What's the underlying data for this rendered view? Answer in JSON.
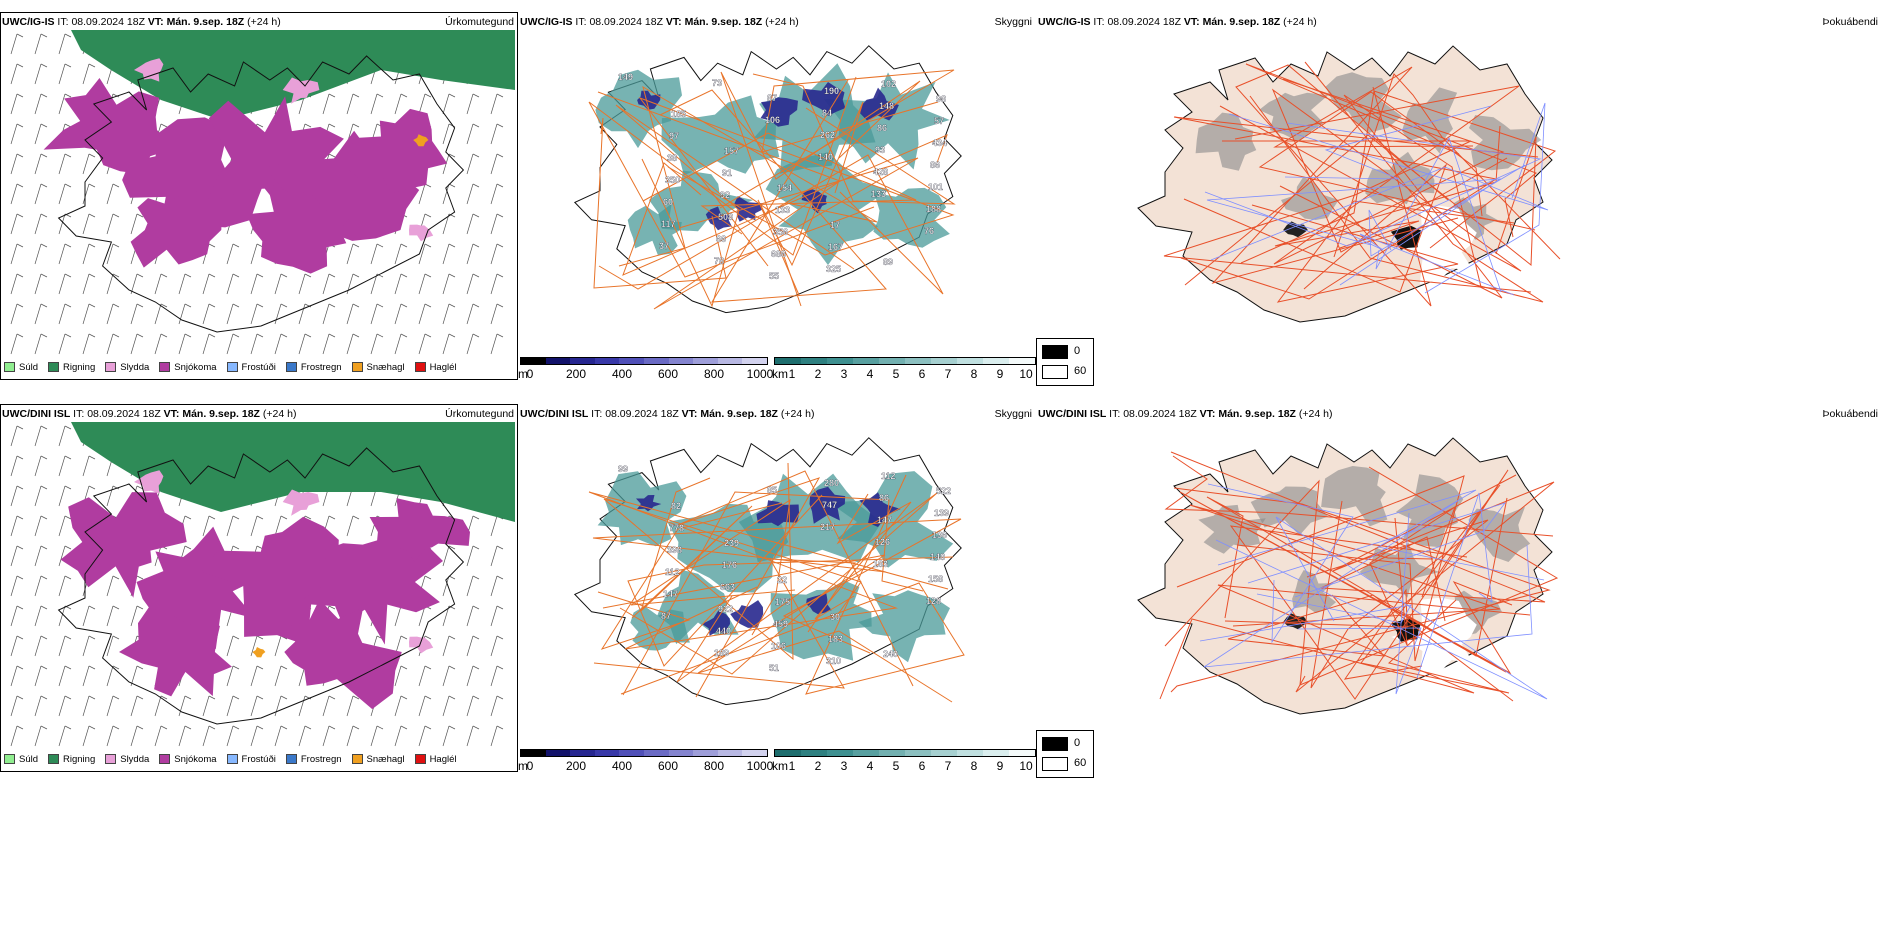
{
  "colors": {
    "rain": "#2e8b57",
    "snow": "#b03ca0",
    "sleet": "#e8a0d8",
    "drizzle": "#90ee90",
    "freezing_drizzle": "#87b8ff",
    "freezing_rain": "#3a78c9",
    "snow_pellets": "#f0a020",
    "hail": "#e01010",
    "roads": "#e8742a",
    "land_fog": "#f3e2d6",
    "fog_roads": "#e8502a",
    "rivers": "#7f8fff"
  },
  "rows": [
    {
      "model": "UWC/IG-IS",
      "it_label": "IT:",
      "it_value": "08.09.2024 18Z",
      "vt_label": "VT:",
      "vt_value": "Mán. 9.sep. 18Z",
      "lead": "(+24 h)",
      "panel_precip": "Úrkomutegund",
      "panel_cloud": "Skyggni",
      "panel_fog": "Þokuábendi",
      "cloud_labels": [
        {
          "t": "149"
        },
        {
          "t": "185"
        },
        {
          "t": "157"
        },
        {
          "t": "154"
        },
        {
          "t": "17"
        },
        {
          "t": "89"
        },
        {
          "t": "98"
        },
        {
          "t": "97"
        },
        {
          "t": "91"
        },
        {
          "t": "133"
        },
        {
          "t": "167"
        },
        {
          "t": "102"
        },
        {
          "t": "57"
        },
        {
          "t": "38"
        },
        {
          "t": "92"
        },
        {
          "t": "356"
        },
        {
          "t": "325"
        },
        {
          "t": "148"
        },
        {
          "t": "434"
        },
        {
          "t": "350"
        },
        {
          "t": "508"
        },
        {
          "t": "686"
        },
        {
          "t": "190"
        },
        {
          "t": "86"
        },
        {
          "t": "86"
        },
        {
          "t": "60"
        },
        {
          "t": "66"
        },
        {
          "t": "55"
        },
        {
          "t": "84"
        },
        {
          "t": "93"
        },
        {
          "t": "101"
        },
        {
          "t": "117"
        },
        {
          "t": "78"
        },
        {
          "t": "87"
        },
        {
          "t": "262"
        },
        {
          "t": "428"
        },
        {
          "t": "188"
        },
        {
          "t": "37"
        },
        {
          "t": "73"
        },
        {
          "t": "106"
        },
        {
          "t": "140"
        },
        {
          "t": "133"
        },
        {
          "t": "76"
        }
      ]
    },
    {
      "model": "UWC/DINI ISL",
      "it_label": "IT:",
      "it_value": "08.09.2024 18Z",
      "vt_label": "VT:",
      "vt_value": "Mán. 9.sep. 18Z",
      "lead": "(+24 h)",
      "panel_precip": "Úrkomutegund",
      "panel_cloud": "Skyggni",
      "panel_fog": "Þokuábendi",
      "cloud_labels": [
        {
          "t": "99"
        },
        {
          "t": "82"
        },
        {
          "t": "239"
        },
        {
          "t": "22"
        },
        {
          "t": "30"
        },
        {
          "t": "240"
        },
        {
          "t": "522"
        },
        {
          "t": "778"
        },
        {
          "t": "176"
        },
        {
          "t": "175"
        },
        {
          "t": "183"
        },
        {
          "t": "112"
        },
        {
          "t": "139"
        },
        {
          "t": "398"
        },
        {
          "t": "663"
        },
        {
          "t": "459"
        },
        {
          "t": "310"
        },
        {
          "t": "86"
        },
        {
          "t": "136"
        },
        {
          "t": "112"
        },
        {
          "t": "922"
        },
        {
          "t": "106"
        },
        {
          "t": "280"
        },
        {
          "t": "147"
        },
        {
          "t": "148"
        },
        {
          "t": "147"
        },
        {
          "t": "440"
        },
        {
          "t": "51"
        },
        {
          "t": "747"
        },
        {
          "t": "126"
        },
        {
          "t": "158"
        },
        {
          "t": "87"
        },
        {
          "t": "189"
        },
        {
          "t": "85"
        },
        {
          "t": "217"
        },
        {
          "t": "183"
        },
        {
          "t": "128"
        }
      ]
    }
  ],
  "precip_legend": [
    {
      "label": "Súld",
      "color": "#90ee90"
    },
    {
      "label": "Rigning",
      "color": "#2e8b57"
    },
    {
      "label": "Slydda",
      "color": "#e8a0d8"
    },
    {
      "label": "Snjókoma",
      "color": "#b03ca0"
    },
    {
      "label": "Frostúði",
      "color": "#87b8ff"
    },
    {
      "label": "Frostregn",
      "color": "#3a78c9"
    },
    {
      "label": "Snæhagl",
      "color": "#f0a020"
    },
    {
      "label": "Haglél",
      "color": "#e01010"
    }
  ],
  "height_scale": {
    "unit": "m",
    "ticks": [
      "0",
      "200",
      "400",
      "600",
      "800",
      "1000"
    ],
    "colors": [
      "#000000",
      "#12126a",
      "#262690",
      "#3838a8",
      "#5050b8",
      "#6a6ac4",
      "#8484cf",
      "#9e9ed9",
      "#b8b8e3",
      "#d2d2ee"
    ]
  },
  "vis_scale": {
    "unit": "km",
    "ticks": [
      "1",
      "2",
      "3",
      "4",
      "5",
      "6",
      "7",
      "8",
      "9",
      "10"
    ],
    "colors": [
      "#1e6e6e",
      "#2e8080",
      "#3e9090",
      "#58a0a0",
      "#72b0b0",
      "#8cc0c0",
      "#a6d0d0",
      "#c0e0e0",
      "#daeeee",
      "#f4fafa"
    ]
  },
  "fog_scale": {
    "low": "0",
    "high": "60"
  }
}
